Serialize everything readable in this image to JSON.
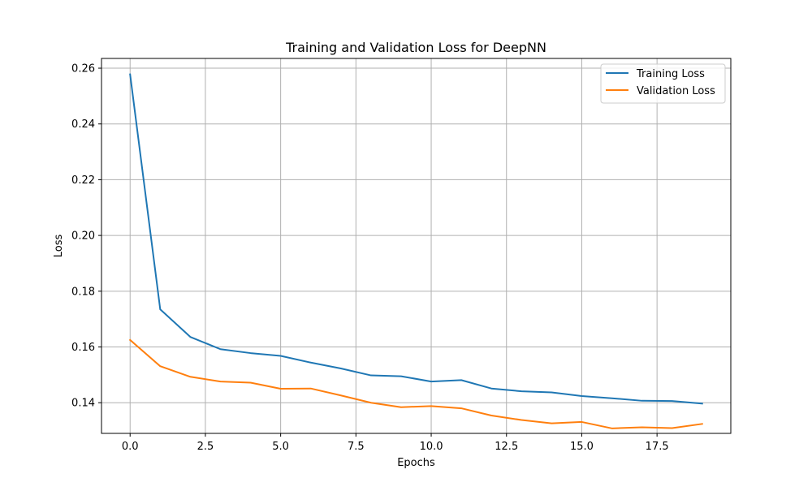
{
  "chart_data": {
    "type": "line",
    "title": "Training and Validation Loss for DeepNN",
    "xlabel": "Epochs",
    "ylabel": "Loss",
    "xlim": [
      -0.95,
      19.95
    ],
    "ylim": [
      0.129,
      0.2635
    ],
    "x_ticks": [
      0.0,
      2.5,
      5.0,
      7.5,
      10.0,
      12.5,
      15.0,
      17.5
    ],
    "x_tick_labels": [
      "0.0",
      "2.5",
      "5.0",
      "7.5",
      "10.0",
      "12.5",
      "15.0",
      "17.5"
    ],
    "y_ticks": [
      0.14,
      0.16,
      0.18,
      0.2,
      0.22,
      0.24,
      0.26
    ],
    "y_tick_labels": [
      "0.14",
      "0.16",
      "0.18",
      "0.20",
      "0.22",
      "0.24",
      "0.26"
    ],
    "grid": true,
    "legend_position": "top-right",
    "x": [
      0,
      1,
      2,
      3,
      4,
      5,
      6,
      7,
      8,
      9,
      10,
      11,
      12,
      13,
      14,
      15,
      16,
      17,
      18,
      19
    ],
    "series": [
      {
        "name": "Training Loss",
        "color": "#1f77b4",
        "values": [
          0.2578,
          0.1735,
          0.1636,
          0.1592,
          0.1578,
          0.1568,
          0.1544,
          0.1523,
          0.1498,
          0.1495,
          0.1476,
          0.1481,
          0.1451,
          0.1441,
          0.1437,
          0.1424,
          0.1416,
          0.1407,
          0.1406,
          0.1397
        ]
      },
      {
        "name": "Validation Loss",
        "color": "#ff7f0e",
        "values": [
          0.1625,
          0.1531,
          0.1493,
          0.1476,
          0.1472,
          0.145,
          0.1451,
          0.1426,
          0.14,
          0.1384,
          0.1388,
          0.138,
          0.1354,
          0.1338,
          0.1326,
          0.1331,
          0.1308,
          0.1312,
          0.1309,
          0.1324
        ]
      }
    ]
  }
}
